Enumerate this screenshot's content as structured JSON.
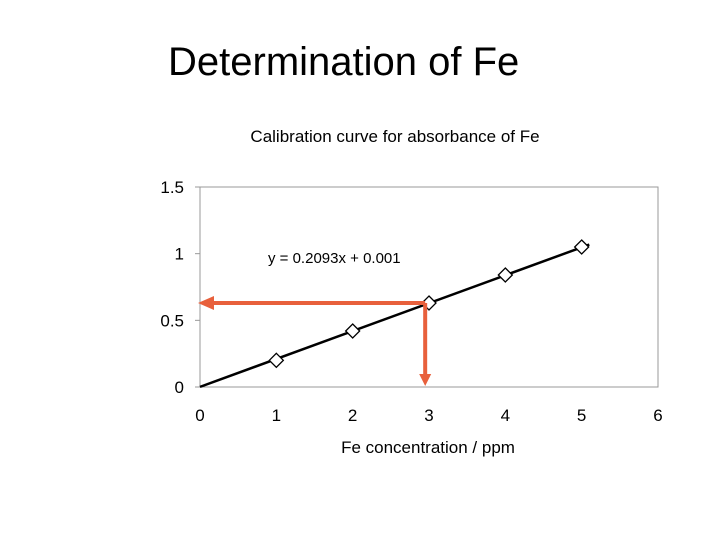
{
  "slide": {
    "title": "Determination of Fe"
  },
  "colors": {
    "line": "#000000",
    "marker": "#000000",
    "annotation_arrow": "#e8603c",
    "frame": "#999999"
  },
  "chart_data": {
    "type": "scatter",
    "title": "Calibration curve for absorbance of Fe",
    "xlabel": "Fe concentration / ppm",
    "ylabel": "",
    "xlim": [
      0,
      6
    ],
    "ylim": [
      0,
      1.5
    ],
    "x_ticks": [
      0,
      1,
      2,
      3,
      4,
      5,
      6
    ],
    "y_ticks": [
      0,
      0.5,
      1,
      1.5
    ],
    "x_tick_labels": [
      "0",
      "1",
      "2",
      "3",
      "4",
      "5",
      "6"
    ],
    "y_tick_labels": [
      "0",
      "0.5",
      "1",
      "1.5"
    ],
    "grid": false,
    "legend": "none",
    "series": [
      {
        "x": [
          1,
          2,
          3,
          4,
          5
        ],
        "y": [
          0.2,
          0.42,
          0.63,
          0.84,
          1.05
        ]
      }
    ],
    "trendline": {
      "equation": "y = 0.2093x + 0.001",
      "slope": 0.2093,
      "intercept": 0.001,
      "x_range": [
        0,
        5.1
      ]
    },
    "annotation": {
      "y_value": 0.63,
      "x_value": 2.95,
      "x_arrow_end": 0
    }
  }
}
